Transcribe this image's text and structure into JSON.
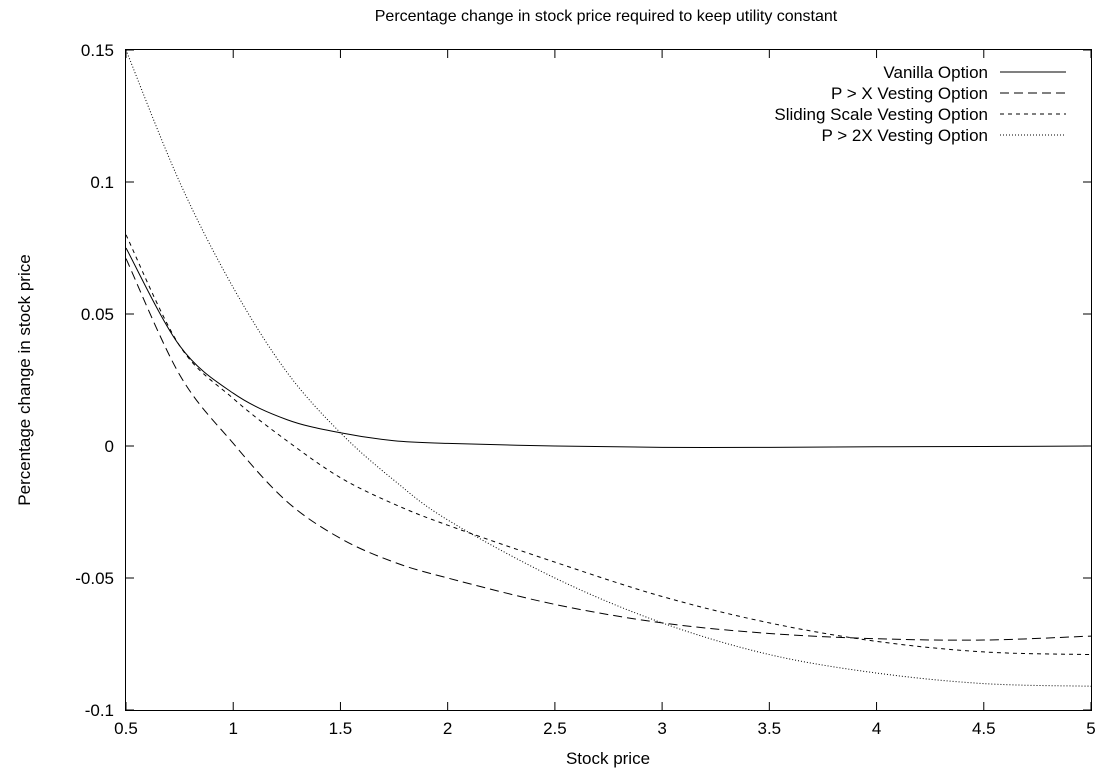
{
  "chart_data": {
    "type": "line",
    "title": "Percentage change in stock price required to keep utility constant",
    "xlabel": "Stock price",
    "ylabel": "Percentage change in stock price",
    "xlim": [
      0.5,
      5
    ],
    "ylim": [
      -0.1,
      0.15
    ],
    "xticks": [
      "0.5",
      "1",
      "1.5",
      "2",
      "2.5",
      "3",
      "3.5",
      "4",
      "4.5",
      "5"
    ],
    "yticks": [
      "-0.1",
      "-0.05",
      "0",
      "0.05",
      "0.1",
      "0.15"
    ],
    "xtick_values": [
      0.5,
      1,
      1.5,
      2,
      2.5,
      3,
      3.5,
      4,
      4.5,
      5
    ],
    "ytick_values": [
      -0.1,
      -0.05,
      0,
      0.05,
      0.1,
      0.15
    ],
    "grid": false,
    "legend_position": "top-right",
    "x": [
      0.5,
      0.75,
      1.0,
      1.25,
      1.5,
      1.75,
      2.0,
      2.5,
      3.0,
      3.5,
      4.0,
      4.5,
      5.0
    ],
    "series": [
      {
        "name": "Vanilla Option",
        "dash": "solid",
        "values": [
          0.075,
          0.038,
          0.02,
          0.01,
          0.005,
          0.002,
          0.001,
          0.0,
          -0.0005,
          -0.0005,
          -0.0003,
          -0.0002,
          0.0
        ]
      },
      {
        "name": "P > X Vesting Option",
        "dash": "long-dash",
        "values": [
          0.071,
          0.027,
          0.001,
          -0.021,
          -0.035,
          -0.044,
          -0.05,
          -0.06,
          -0.067,
          -0.071,
          -0.073,
          -0.0735,
          -0.072
        ]
      },
      {
        "name": "Sliding Scale Vesting Option",
        "dash": "short-dash",
        "values": [
          0.08,
          0.038,
          0.018,
          0.002,
          -0.012,
          -0.022,
          -0.03,
          -0.044,
          -0.057,
          -0.067,
          -0.074,
          -0.078,
          -0.079
        ]
      },
      {
        "name": "P > 2X Vesting Option",
        "dash": "dotted",
        "values": [
          0.15,
          0.1,
          0.06,
          0.028,
          0.005,
          -0.013,
          -0.028,
          -0.05,
          -0.067,
          -0.079,
          -0.086,
          -0.09,
          -0.091
        ]
      }
    ]
  }
}
